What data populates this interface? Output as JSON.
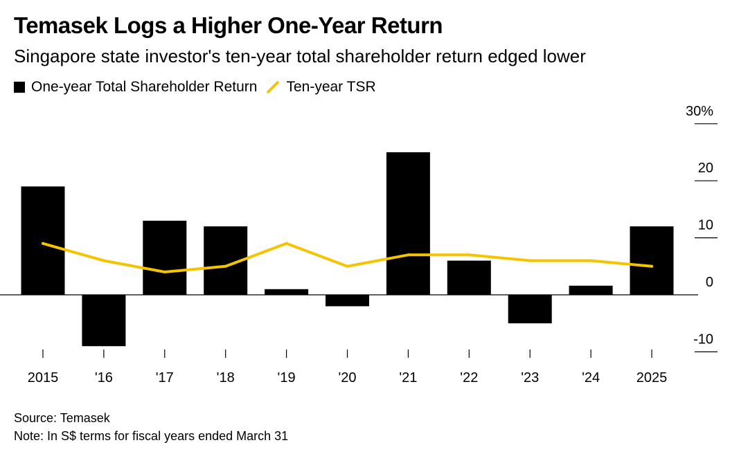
{
  "title": "Temasek Logs a Higher One-Year Return",
  "subtitle": "Singapore state investor's ten-year total shareholder return edged lower",
  "legend": {
    "bar_label": "One-year Total Shareholder Return",
    "line_label": "Ten-year TSR"
  },
  "source": "Source: Temasek",
  "note": "Note: In S$ terms for fiscal years ended March 31",
  "colors": {
    "bar": "#000000",
    "line": "#f5c400",
    "axis": "#000000"
  },
  "chart_data": {
    "type": "bar",
    "categories": [
      "2015",
      "'16",
      "'17",
      "'18",
      "'19",
      "'20",
      "'21",
      "'22",
      "'23",
      "'24",
      "2025"
    ],
    "series": [
      {
        "name": "One-year Total Shareholder Return",
        "type": "bar",
        "values": [
          19,
          -9,
          13,
          12,
          1,
          -2,
          25,
          6,
          -5,
          1.6,
          12
        ]
      },
      {
        "name": "Ten-year TSR",
        "type": "line",
        "values": [
          9,
          6,
          4,
          5,
          9,
          5,
          7,
          7,
          6,
          6,
          5
        ]
      }
    ],
    "ylim": [
      -10,
      30
    ],
    "yticks": [
      30,
      20,
      10,
      0,
      -10
    ],
    "ytick_labels": [
      "30%",
      "20",
      "10",
      "0",
      "-10"
    ],
    "y_axis_position": "right",
    "grid": false,
    "legend_position": "top-left"
  }
}
